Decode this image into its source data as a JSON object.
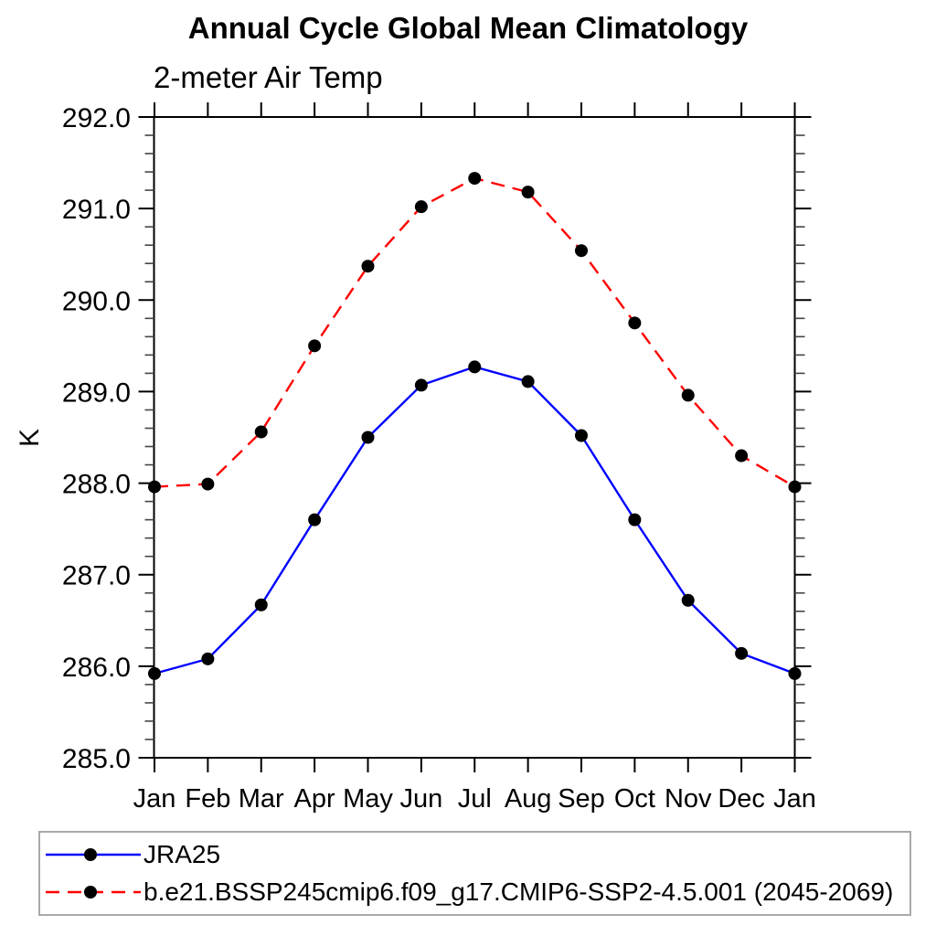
{
  "header": {
    "title": "Annual Cycle Global Mean Climatology",
    "subtitle": "2-meter Air Temp"
  },
  "axes": {
    "ylabel": "K",
    "axis_color": "#000000",
    "minor_tick_color": "#444444"
  },
  "legend": {
    "border_color": "#a9a9a9",
    "items": [
      {
        "label": "JRA25",
        "color": "#0000ff",
        "style": "solid"
      },
      {
        "label": "b.e21.BSSP245cmip6.f09_g17.CMIP6-SSP2-4.5.001 (2045-2069)",
        "color": "#ff0000",
        "style": "dashed"
      }
    ]
  },
  "chart_data": {
    "type": "line",
    "title": "Annual Cycle Global Mean Climatology",
    "subtitle": "2-meter Air Temp",
    "ylabel": "K",
    "categories": [
      "Jan",
      "Feb",
      "Mar",
      "Apr",
      "May",
      "Jun",
      "Jul",
      "Aug",
      "Sep",
      "Oct",
      "Nov",
      "Dec",
      "Jan"
    ],
    "series": [
      {
        "name": "JRA25",
        "color": "#0000ff",
        "line_style": "solid",
        "marker": "filled-circle",
        "marker_color": "#000000",
        "values": [
          285.92,
          286.08,
          286.67,
          287.6,
          288.5,
          289.07,
          289.27,
          289.11,
          288.52,
          287.6,
          286.72,
          286.14,
          285.92
        ]
      },
      {
        "name": "b.e21.BSSP245cmip6.f09_g17.CMIP6-SSP2-4.5.001 (2045-2069)",
        "color": "#ff0000",
        "line_style": "dashed",
        "marker": "filled-circle",
        "marker_color": "#000000",
        "values": [
          287.96,
          287.99,
          288.56,
          289.5,
          290.37,
          291.02,
          291.33,
          291.18,
          290.54,
          289.75,
          288.96,
          288.3,
          287.96
        ]
      }
    ],
    "ylim": [
      285.0,
      292.0
    ],
    "ytick_step": 1.0,
    "ytick_minor_step": 0.2,
    "ytick_decimals": 1,
    "grid": false,
    "tick_direction": "out",
    "legend_position": "bottom-left-box"
  }
}
